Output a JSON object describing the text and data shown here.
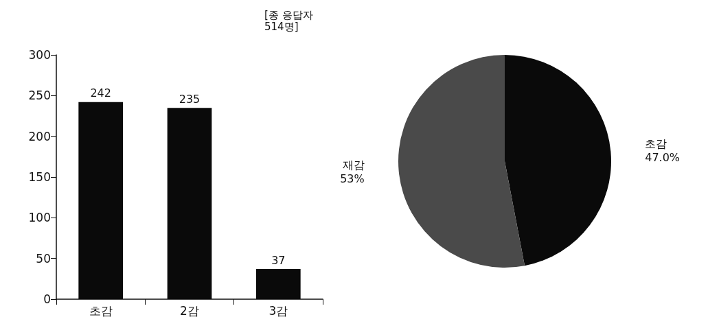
{
  "chart_data": [
    {
      "type": "bar",
      "title": "[종 응답자\n514명]",
      "categories": [
        "초감",
        "2감",
        "3감"
      ],
      "values": [
        242,
        235,
        37
      ],
      "color": "#0a0a0a",
      "ylim": [
        0,
        300
      ],
      "yticks": [
        0,
        50,
        100,
        150,
        200,
        250,
        300
      ],
      "grid": false,
      "data_labels": true
    },
    {
      "type": "pie",
      "categories": [
        "초감",
        "재감"
      ],
      "values": [
        47.0,
        53
      ],
      "colors": [
        "#0a0a0a",
        "#4a4a4a"
      ],
      "value_labels": [
        "47.0%",
        "53%"
      ]
    }
  ]
}
